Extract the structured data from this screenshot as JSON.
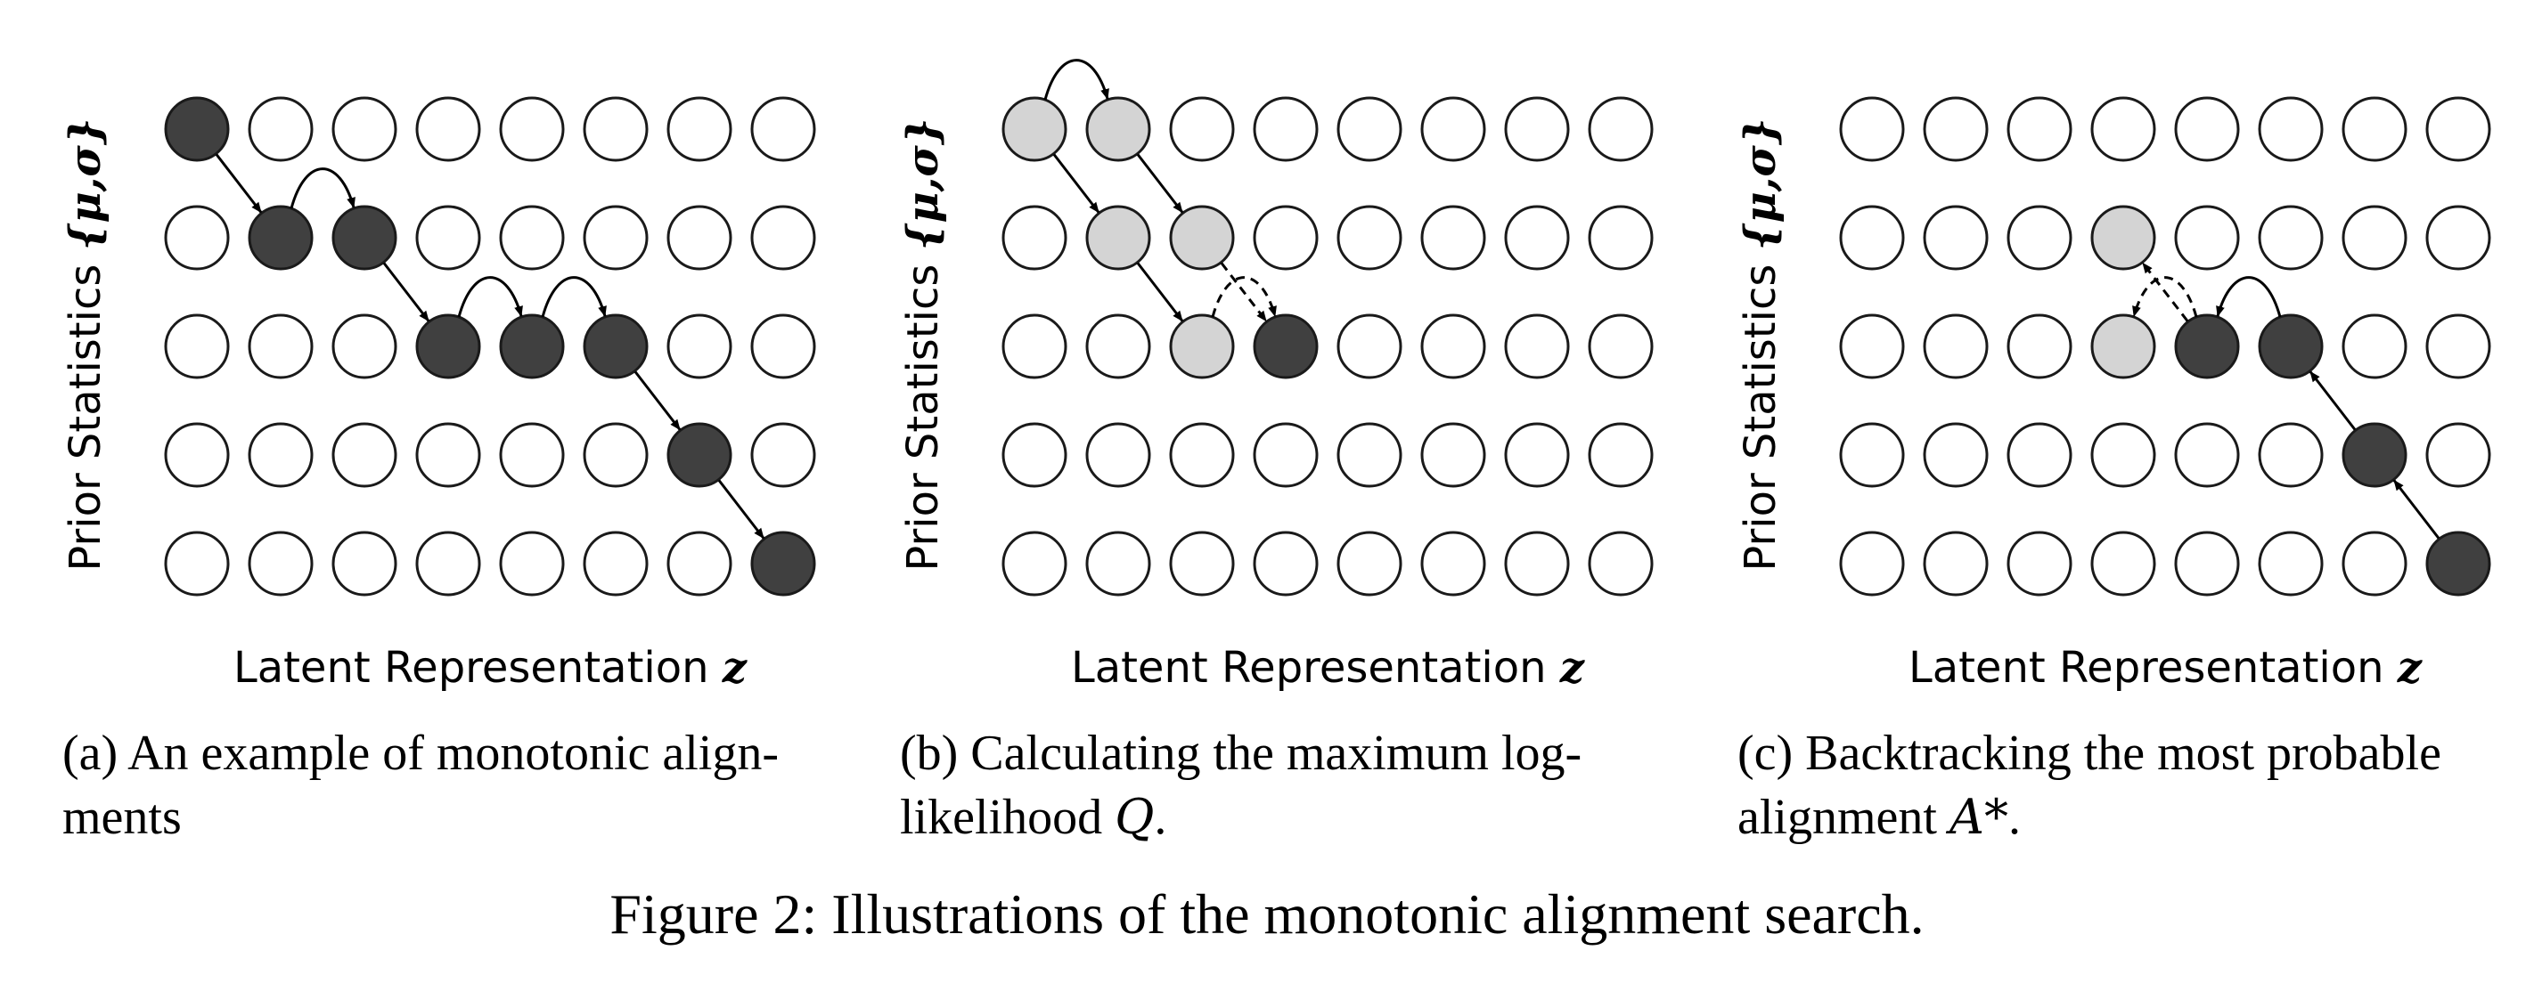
{
  "figure": {
    "caption": "Figure 2: Illustrations of the monotonic alignment search.",
    "colors": {
      "dark": "#404040",
      "light": "#d4d4d4",
      "empty": "#ffffff",
      "stroke": "#1a1a1a"
    },
    "panels": [
      {
        "id": "a",
        "ylabel_text": "Prior Statistics",
        "ylabel_math": "{μ,σ}",
        "xlabel_text": "Latent Representation",
        "xlabel_math": "z",
        "caption_lines": [
          "(a) An example of monotonic align-",
          "ments"
        ],
        "caption_math": "",
        "caption_suffix": "",
        "grid": {
          "rows": 5,
          "cols": 8
        },
        "nodes": [
          {
            "row": 0,
            "col": 0,
            "state": "dark"
          },
          {
            "row": 1,
            "col": 1,
            "state": "dark"
          },
          {
            "row": 1,
            "col": 2,
            "state": "dark"
          },
          {
            "row": 2,
            "col": 3,
            "state": "dark"
          },
          {
            "row": 2,
            "col": 4,
            "state": "dark"
          },
          {
            "row": 2,
            "col": 5,
            "state": "dark"
          },
          {
            "row": 3,
            "col": 6,
            "state": "dark"
          },
          {
            "row": 4,
            "col": 7,
            "state": "dark"
          }
        ],
        "edges": [
          {
            "from": [
              0,
              0
            ],
            "to": [
              1,
              1
            ],
            "style": "solid",
            "shape": "diag"
          },
          {
            "from": [
              1,
              1
            ],
            "to": [
              1,
              2
            ],
            "style": "solid",
            "shape": "arc"
          },
          {
            "from": [
              1,
              2
            ],
            "to": [
              2,
              3
            ],
            "style": "solid",
            "shape": "diag"
          },
          {
            "from": [
              2,
              3
            ],
            "to": [
              2,
              4
            ],
            "style": "solid",
            "shape": "arc"
          },
          {
            "from": [
              2,
              4
            ],
            "to": [
              2,
              5
            ],
            "style": "solid",
            "shape": "arc"
          },
          {
            "from": [
              2,
              5
            ],
            "to": [
              3,
              6
            ],
            "style": "solid",
            "shape": "diag"
          },
          {
            "from": [
              3,
              6
            ],
            "to": [
              4,
              7
            ],
            "style": "solid",
            "shape": "diag"
          }
        ]
      },
      {
        "id": "b",
        "ylabel_text": "Prior Statistics",
        "ylabel_math": "{μ,σ}",
        "xlabel_text": "Latent Representation",
        "xlabel_math": "z",
        "caption_lines": [
          "(b) Calculating the maximum log-",
          "likelihood "
        ],
        "caption_math": "Q",
        "caption_suffix": ".",
        "grid": {
          "rows": 5,
          "cols": 8
        },
        "nodes": [
          {
            "row": 0,
            "col": 0,
            "state": "light"
          },
          {
            "row": 0,
            "col": 1,
            "state": "light"
          },
          {
            "row": 1,
            "col": 1,
            "state": "light"
          },
          {
            "row": 1,
            "col": 2,
            "state": "light"
          },
          {
            "row": 2,
            "col": 2,
            "state": "light"
          },
          {
            "row": 2,
            "col": 3,
            "state": "dark"
          }
        ],
        "edges": [
          {
            "from": [
              0,
              0
            ],
            "to": [
              0,
              1
            ],
            "style": "solid",
            "shape": "arc"
          },
          {
            "from": [
              0,
              0
            ],
            "to": [
              1,
              1
            ],
            "style": "solid",
            "shape": "diag"
          },
          {
            "from": [
              0,
              1
            ],
            "to": [
              1,
              2
            ],
            "style": "solid",
            "shape": "diag"
          },
          {
            "from": [
              1,
              1
            ],
            "to": [
              2,
              2
            ],
            "style": "solid",
            "shape": "diag"
          },
          {
            "from": [
              1,
              2
            ],
            "to": [
              2,
              3
            ],
            "style": "dashed",
            "shape": "diag"
          },
          {
            "from": [
              2,
              2
            ],
            "to": [
              2,
              3
            ],
            "style": "dashed",
            "shape": "arc"
          }
        ]
      },
      {
        "id": "c",
        "ylabel_text": "Prior Statistics",
        "ylabel_math": "{μ,σ}",
        "xlabel_text": "Latent Representation",
        "xlabel_math": "z",
        "caption_lines": [
          "(c) Backtracking the most probable",
          "alignment "
        ],
        "caption_math": "A*",
        "caption_suffix": ".",
        "grid": {
          "rows": 5,
          "cols": 8
        },
        "nodes": [
          {
            "row": 1,
            "col": 3,
            "state": "light"
          },
          {
            "row": 2,
            "col": 3,
            "state": "light"
          },
          {
            "row": 2,
            "col": 4,
            "state": "dark"
          },
          {
            "row": 2,
            "col": 5,
            "state": "dark"
          },
          {
            "row": 3,
            "col": 6,
            "state": "dark"
          },
          {
            "row": 4,
            "col": 7,
            "state": "dark"
          }
        ],
        "edges": [
          {
            "from": [
              4,
              7
            ],
            "to": [
              3,
              6
            ],
            "style": "solid",
            "shape": "diag"
          },
          {
            "from": [
              3,
              6
            ],
            "to": [
              2,
              5
            ],
            "style": "solid",
            "shape": "diag"
          },
          {
            "from": [
              2,
              5
            ],
            "to": [
              2,
              4
            ],
            "style": "solid",
            "shape": "arc"
          },
          {
            "from": [
              2,
              4
            ],
            "to": [
              1,
              3
            ],
            "style": "dashed",
            "shape": "diag"
          },
          {
            "from": [
              2,
              4
            ],
            "to": [
              2,
              3
            ],
            "style": "dashed",
            "shape": "arc"
          }
        ]
      }
    ]
  }
}
